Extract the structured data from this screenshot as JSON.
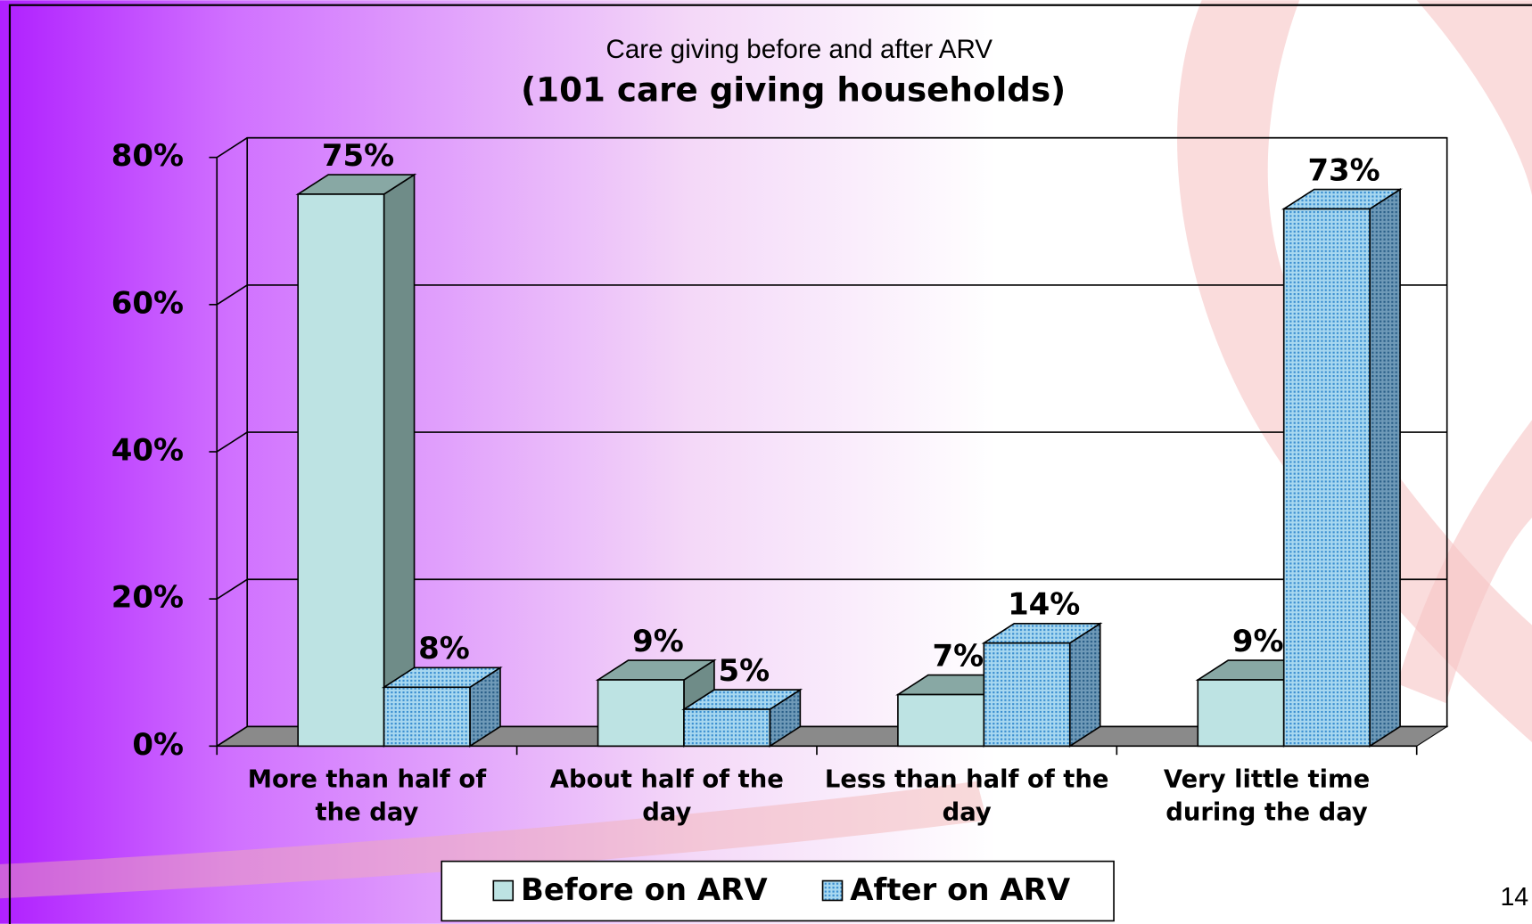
{
  "chart_data": {
    "type": "bar3d",
    "title": "Care giving before and after ARV",
    "subtitle": "(101 care giving households)",
    "categories": [
      "More than half of the day",
      "About half of the day",
      "Less than half of the day",
      "Very little time during the day"
    ],
    "series": [
      {
        "name": "Before on ARV",
        "color": "#bde3e3",
        "values": [
          75,
          9,
          7,
          9
        ],
        "value_labels": [
          "75%",
          "9%",
          "7%",
          "9%"
        ]
      },
      {
        "name": "After on ARV",
        "color": "#a8d8f0",
        "values": [
          8,
          5,
          14,
          73
        ],
        "value_labels": [
          "8%",
          "5%",
          "14%",
          "73%"
        ]
      }
    ],
    "ylim": [
      0,
      80
    ],
    "yticks": [
      {
        "value": 0,
        "label": "0%"
      },
      {
        "value": 20,
        "label": "20%"
      },
      {
        "value": 40,
        "label": "40%"
      },
      {
        "value": 60,
        "label": "60%"
      },
      {
        "value": 80,
        "label": "80%"
      }
    ],
    "grid": true,
    "legend": "bottom"
  },
  "page_number": "14"
}
